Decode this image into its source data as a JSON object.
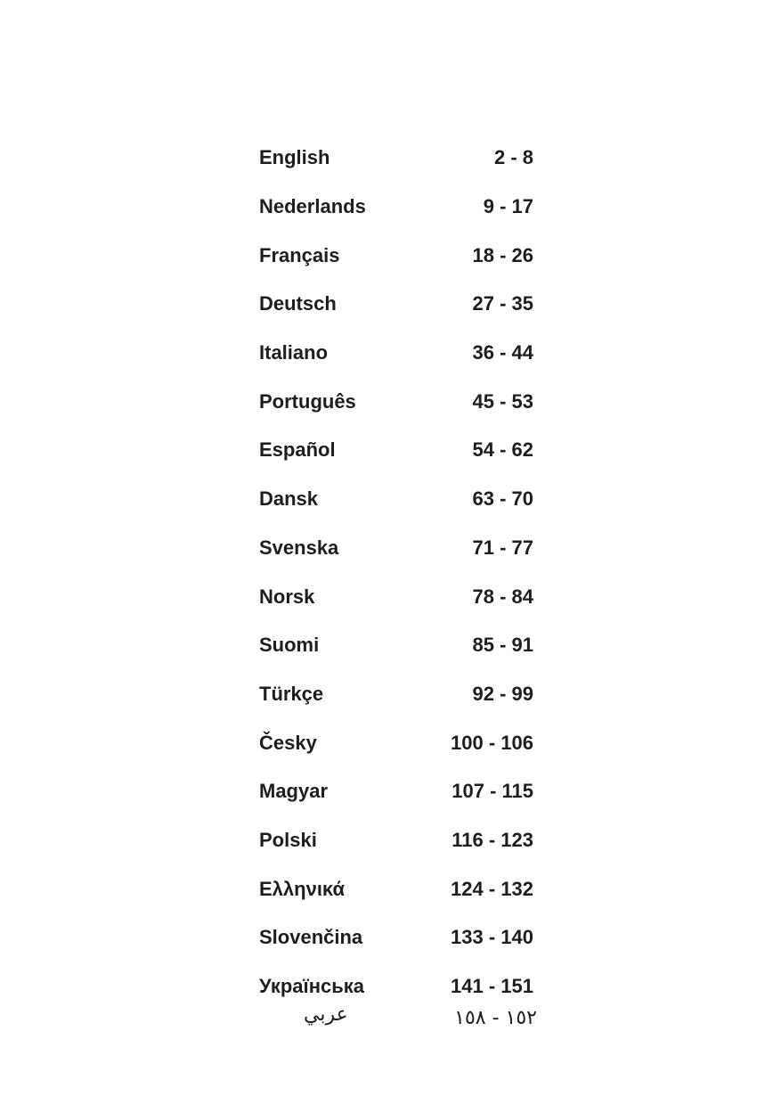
{
  "languages": [
    {
      "name": "English",
      "pages": "2 - 8"
    },
    {
      "name": "Nederlands",
      "pages": "9 - 17"
    },
    {
      "name": "Français",
      "pages": "18 - 26"
    },
    {
      "name": "Deutsch",
      "pages": "27 - 35"
    },
    {
      "name": "Italiano",
      "pages": "36 - 44"
    },
    {
      "name": "Português",
      "pages": "45 - 53"
    },
    {
      "name": "Español",
      "pages": "54 - 62"
    },
    {
      "name": "Dansk",
      "pages": "63 - 70"
    },
    {
      "name": "Svenska",
      "pages": "71 - 77"
    },
    {
      "name": "Norsk",
      "pages": "78 - 84"
    },
    {
      "name": "Suomi",
      "pages": "85 - 91"
    },
    {
      "name": "Türkçe",
      "pages": "92 - 99"
    },
    {
      "name": "Česky",
      "pages": "100 - 106"
    },
    {
      "name": "Magyar",
      "pages": "107 - 115"
    },
    {
      "name": "Polski",
      "pages": "116 - 123"
    },
    {
      "name": "Ελληνικά",
      "pages": "124 - 132"
    },
    {
      "name": "Slovenčina",
      "pages": "133 - 140"
    },
    {
      "name": "Українська",
      "pages": "141 - 151"
    }
  ],
  "arabic": {
    "name": "عربي",
    "pages": "١٥٢ - ١٥٨"
  }
}
